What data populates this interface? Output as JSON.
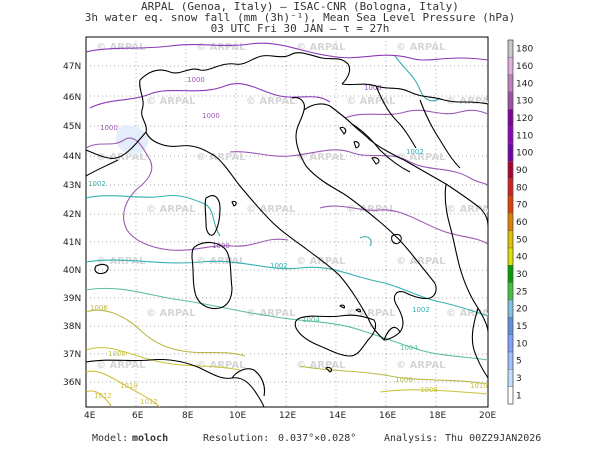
{
  "header": {
    "line1": "ARPAL (Genoa, Italy)  —  ISAC-CNR (Bologna, Italy)",
    "line2": "3h water eq. snow fall (mm (3h)⁻¹), Mean Sea Level Pressure (hPa)",
    "line3": "03 UTC Fri 30 JAN  —  τ = 27h"
  },
  "map": {
    "lat_labels": [
      "47N",
      "46N",
      "45N",
      "44N",
      "43N",
      "42N",
      "41N",
      "40N",
      "39N",
      "38N",
      "37N",
      "36N"
    ],
    "lon_labels": [
      "4E",
      "6E",
      "8E",
      "10E",
      "12E",
      "14E",
      "16E",
      "18E",
      "20E"
    ],
    "watermark": "ARPAL",
    "isobar_labels": [
      "1000",
      "1000",
      "1000",
      "1000",
      "1000",
      "1002",
      "1002",
      "1002",
      "1002",
      "1004",
      "1004",
      "1006",
      "1006",
      "1008",
      "1008",
      "1010",
      "1010",
      "1012",
      "1012"
    ],
    "isobar_colors": {
      "p996": "#8a3ab9",
      "p1000": "#9b59b6",
      "p1002": "#36b0b0",
      "p1004": "#5dbd9e",
      "p1006": "#b9b94a",
      "p1008": "#c9c33a"
    },
    "coast_color": "#000000"
  },
  "colorbar": {
    "labels": [
      "180",
      "160",
      "140",
      "130",
      "120",
      "110",
      "100",
      "90",
      "80",
      "70",
      "60",
      "50",
      "40",
      "30",
      "25",
      "20",
      "15",
      "10",
      "5",
      "3",
      "1"
    ],
    "colors": [
      "#c8c8c8",
      "#e0b0e0",
      "#c080c0",
      "#a050a8",
      "#8000a0",
      "#9000c0",
      "#7000b0",
      "#b00030",
      "#d02020",
      "#e04000",
      "#e08000",
      "#e0c000",
      "#e0e000",
      "#00a000",
      "#40c040",
      "#80c0e0",
      "#6090e0",
      "#80a0ff",
      "#a0c0ff",
      "#c0e0ff",
      "#ffffff"
    ]
  },
  "footer": {
    "model_label": "Model:",
    "model_value": "moloch",
    "resolution_label": "Resolution:",
    "resolution_value": "0.037°×0.028°",
    "analysis_label": "Analysis:",
    "analysis_value": "Thu 00Z29JAN2026"
  }
}
